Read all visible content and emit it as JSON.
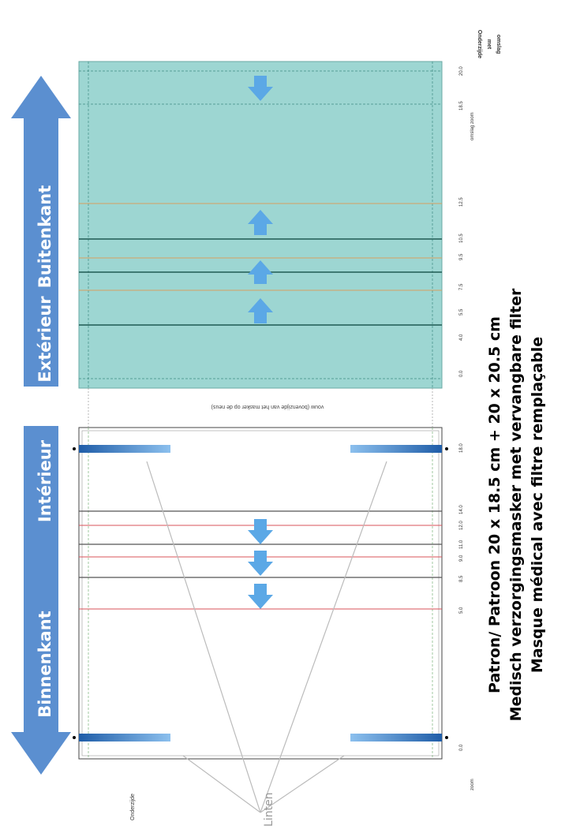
{
  "labels": {
    "outer_nl": "Buitenkant",
    "outer_fr": "Extérieur",
    "inner_fr": "Intérieur",
    "inner_nl": "Binnenkant",
    "top_right": "Onderzijde\nmet\nomslag",
    "bottom_left": "Onderzijde",
    "fold_note": "vouw (bovenzijde van het masker op de neus)",
    "linten": "Linten",
    "zoom": "zoom",
    "omslag_zoom": "omslag zoom"
  },
  "title": {
    "line1": "Patron/ Patroon 20 x 18.5 cm + 20 x 20.5 cm",
    "line2": "Medisch verzorgingsmasker met vervangbare filter",
    "line3": "Masque médical avec filtre remplaçable"
  },
  "measurements": {
    "teal": [
      "0.0",
      "4.0",
      "5.5",
      "7.5",
      "9.5",
      "10.5",
      "12.5",
      "18.5",
      "20.0"
    ],
    "lower": [
      "0.0",
      "5.0",
      "8.5",
      "9.0",
      "11.0",
      "12.0",
      "14.0",
      "18.0"
    ]
  },
  "colors": {
    "teal": "#9dd6d2",
    "teal_dark": "#1e6b60",
    "arrow_blue": "#5b9bd5",
    "red_line": "#d9535a",
    "orange_line": "#e0a070",
    "tie_blue": "#2f6fbf"
  }
}
